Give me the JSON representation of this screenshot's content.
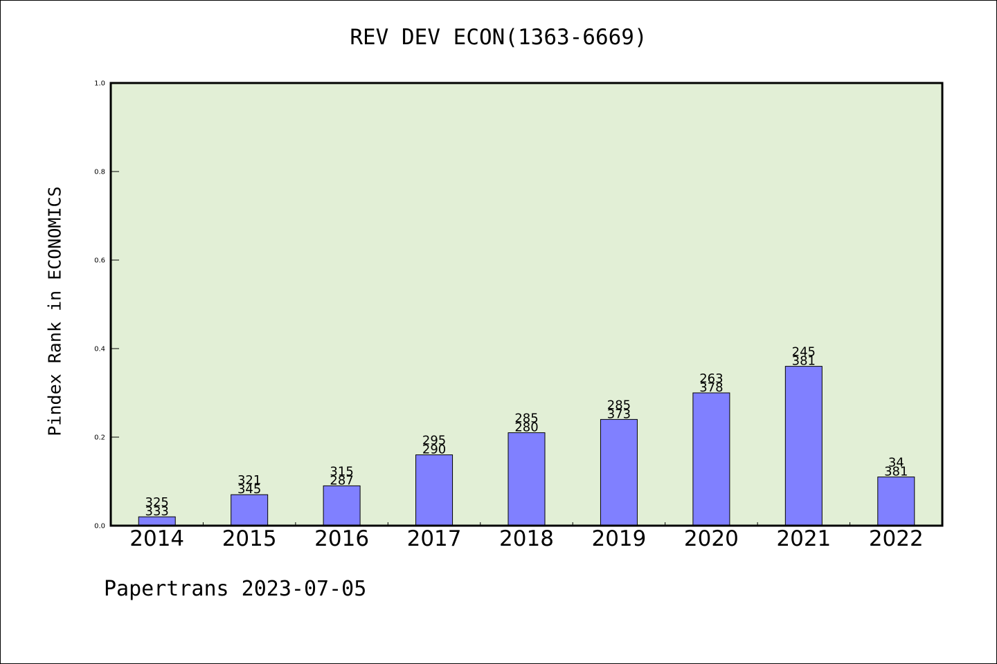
{
  "chart_data": {
    "type": "bar",
    "title": "REV DEV ECON(1363-6669)",
    "ylabel": "Pindex Rank in ECONOMICS",
    "xlabel": "",
    "ylim": [
      0,
      1.0
    ],
    "yticks": [
      "0.0",
      "0.2",
      "0.4",
      "0.6",
      "0.8",
      "1.0"
    ],
    "grid": false,
    "categories": [
      "2014",
      "2015",
      "2016",
      "2017",
      "2018",
      "2019",
      "2020",
      "2021",
      "2022"
    ],
    "values": [
      0.02,
      0.07,
      0.09,
      0.16,
      0.21,
      0.24,
      0.3,
      0.36,
      0.11
    ],
    "data_labels_top": [
      "325",
      "321",
      "315",
      "295",
      "285",
      "285",
      "263",
      "245",
      "34"
    ],
    "data_labels_bottom": [
      "333",
      "345",
      "287",
      "290",
      "280",
      "373",
      "378",
      "381",
      "381"
    ],
    "colors": {
      "plot_background": "#e2efd6",
      "bar_fill": "#8080ff",
      "bar_stroke": "#000000"
    }
  },
  "footer": "Papertrans 2023-07-05"
}
